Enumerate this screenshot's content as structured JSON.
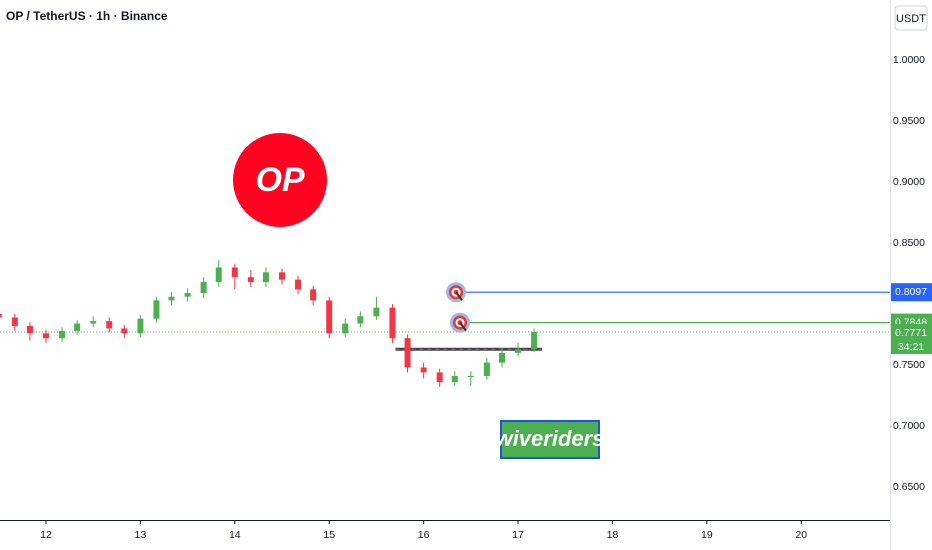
{
  "chart_data": {
    "type": "candlestick",
    "title": "OP / TetherUS · 1h · Binance",
    "y_unit": "USDT",
    "x": [
      11.5,
      11.67,
      11.83,
      12,
      12.17,
      12.33,
      12.5,
      12.67,
      12.83,
      13,
      13.17,
      13.33,
      13.5,
      13.67,
      13.83,
      14,
      14.17,
      14.33,
      14.5,
      14.67,
      14.83,
      15,
      15.17,
      15.33,
      15.5,
      15.67,
      15.83,
      16,
      16.17,
      16.33,
      16.5,
      16.67,
      16.83,
      17,
      17.17
    ],
    "open": [
      0.792,
      0.789,
      0.782,
      0.776,
      0.772,
      0.778,
      0.784,
      0.786,
      0.78,
      0.776,
      0.788,
      0.803,
      0.806,
      0.809,
      0.818,
      0.83,
      0.822,
      0.818,
      0.826,
      0.82,
      0.812,
      0.803,
      0.776,
      0.784,
      0.79,
      0.797,
      0.772,
      0.748,
      0.744,
      0.736,
      0.741,
      0.741,
      0.752,
      0.76,
      0.763
    ],
    "high": [
      0.796,
      0.792,
      0.785,
      0.779,
      0.781,
      0.787,
      0.79,
      0.789,
      0.783,
      0.791,
      0.806,
      0.81,
      0.813,
      0.822,
      0.836,
      0.833,
      0.828,
      0.83,
      0.829,
      0.823,
      0.815,
      0.806,
      0.788,
      0.794,
      0.806,
      0.8,
      0.775,
      0.752,
      0.747,
      0.745,
      0.745,
      0.756,
      0.764,
      0.768,
      0.78
    ],
    "low": [
      0.785,
      0.778,
      0.77,
      0.768,
      0.769,
      0.775,
      0.781,
      0.777,
      0.772,
      0.773,
      0.785,
      0.799,
      0.802,
      0.805,
      0.814,
      0.812,
      0.814,
      0.814,
      0.816,
      0.808,
      0.799,
      0.772,
      0.773,
      0.781,
      0.787,
      0.768,
      0.744,
      0.739,
      0.732,
      0.733,
      0.733,
      0.738,
      0.748,
      0.757,
      0.761
    ],
    "close": [
      0.789,
      0.782,
      0.776,
      0.772,
      0.778,
      0.784,
      0.786,
      0.78,
      0.776,
      0.788,
      0.803,
      0.806,
      0.809,
      0.818,
      0.83,
      0.822,
      0.818,
      0.826,
      0.82,
      0.812,
      0.803,
      0.776,
      0.784,
      0.79,
      0.797,
      0.772,
      0.748,
      0.744,
      0.736,
      0.741,
      0.741,
      0.752,
      0.76,
      0.763,
      0.7771
    ],
    "up_color": "#4caf50",
    "down_color": "#f23645",
    "xlim": [
      11.513,
      20.94
    ],
    "xticks": [
      12,
      13,
      14,
      15,
      16,
      17,
      18,
      19,
      20
    ],
    "ylim": [
      0.623,
      1.0492
    ],
    "yticks": [
      {
        "value": 0.65,
        "label": "0.6500"
      },
      {
        "value": 0.7,
        "label": "0.7000"
      },
      {
        "value": 0.75,
        "label": "0.7500"
      },
      {
        "value": 0.85,
        "label": "0.8500"
      },
      {
        "value": 0.9,
        "label": "0.9000"
      },
      {
        "value": 0.95,
        "label": "0.9500"
      },
      {
        "value": 1.0,
        "label": "1.0000"
      }
    ],
    "grid": false,
    "levels": [
      {
        "value": 0.8097,
        "color": "#2962ff"
      },
      {
        "value": 0.7848,
        "color": "#4caf50"
      }
    ],
    "last_price": 0.7771,
    "countdown": "34:21",
    "support": 0.763,
    "logo_text": "OP",
    "watermark": "wiveriders"
  }
}
